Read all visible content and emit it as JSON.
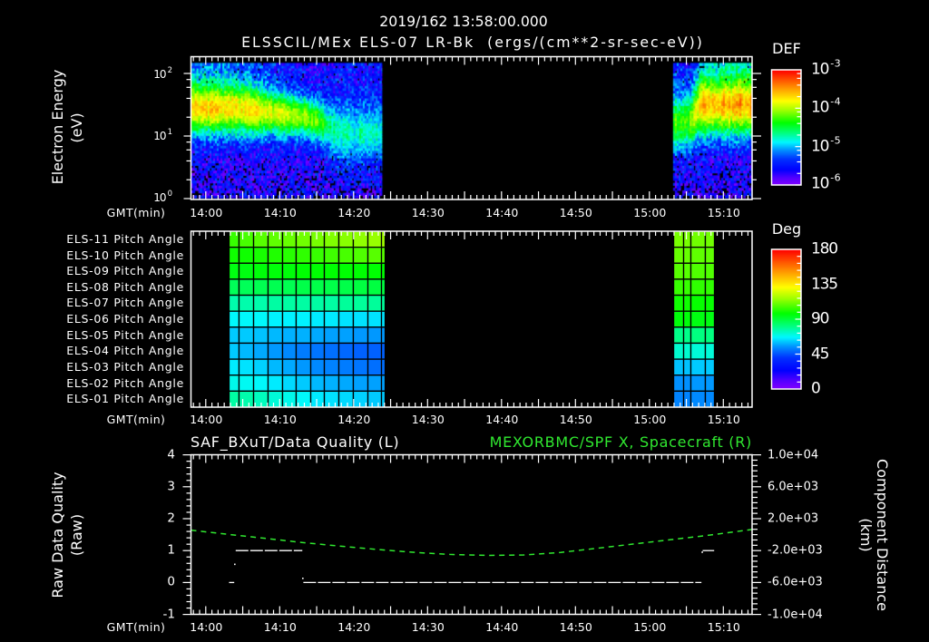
{
  "header": {
    "title_line1": "2019/162 13:58:00.000",
    "title_line2": "ELSSCIL/MEx ELS-07 LR-Bk  (ergs/(cm**2-sr-sec-eV))"
  },
  "time_axis": {
    "label": "GMT(min)",
    "start": "13:58",
    "span_min": 76,
    "tick_labels": [
      "14:00",
      "14:10",
      "14:20",
      "14:30",
      "14:40",
      "14:50",
      "15:00",
      "15:10"
    ]
  },
  "energy_panel": {
    "ylabel": "Electron Energy",
    "yunit": "(eV)",
    "yticks": [
      {
        "base": "10",
        "exp": "2"
      },
      {
        "base": "10",
        "exp": "1"
      },
      {
        "base": "10",
        "exp": "0"
      }
    ],
    "colorbar": {
      "title": "DEF",
      "ticks": [
        {
          "base": "10",
          "exp": "-3"
        },
        {
          "base": "10",
          "exp": "-4"
        },
        {
          "base": "10",
          "exp": "-5"
        },
        {
          "base": "10",
          "exp": "-6"
        }
      ]
    }
  },
  "pitch_panel": {
    "row_labels": [
      "ELS-11 Pitch Angle",
      "ELS-10 Pitch Angle",
      "ELS-09 Pitch Angle",
      "ELS-08 Pitch Angle",
      "ELS-07 Pitch Angle",
      "ELS-06 Pitch Angle",
      "ELS-05 Pitch Angle",
      "ELS-04 Pitch Angle",
      "ELS-03 Pitch Angle",
      "ELS-02 Pitch Angle",
      "ELS-01 Pitch Angle"
    ],
    "colorbar": {
      "title": "Deg",
      "ticks": [
        "180",
        "135",
        "90",
        "45",
        "0"
      ]
    }
  },
  "quality_panel": {
    "left_title": "SAF_BXuT/Data Quality (L)",
    "right_title": "MEXORBMC/SPF X, Spacecraft (R)",
    "ylabel_left": "Raw Data Quality",
    "yunit_left": "(Raw)",
    "yticks_left": [
      "4",
      "3",
      "2",
      "1",
      "0",
      "-1"
    ],
    "ylabel_right": "Component Distance",
    "yunit_right": "(km)",
    "yticks_right": [
      "1.0e+04",
      "6.0e+03",
      "2.0e+03",
      "-2.0e+03",
      "-6.0e+03",
      "-1.0e+04"
    ]
  },
  "colors": {
    "background": "#000000",
    "text": "#ffffff",
    "spacecraft_x_series": "#30e830",
    "data_quality_series": "#ffffff",
    "colormap": [
      [
        0.0,
        "#8000ff"
      ],
      [
        0.06,
        "#5000ff"
      ],
      [
        0.13,
        "#0000ff"
      ],
      [
        0.22,
        "#0030ff"
      ],
      [
        0.3,
        "#0090ff"
      ],
      [
        0.37,
        "#00f8ff"
      ],
      [
        0.45,
        "#00ff80"
      ],
      [
        0.54,
        "#00ff00"
      ],
      [
        0.65,
        "#a0ff00"
      ],
      [
        0.73,
        "#ffff00"
      ],
      [
        0.85,
        "#ff9000"
      ],
      [
        1.0,
        "#ff0000"
      ]
    ]
  },
  "chart_data": [
    {
      "id": "electron-energy-spectrogram",
      "type": "heatmap",
      "title": "ELSSCIL/MEx ELS-07 LR-Bk  (ergs/(cm**2-sr-sec-eV))",
      "xlabel": "GMT(min)",
      "ylabel": "Electron Energy (eV)",
      "x_start": "13:58",
      "x_range_min": [
        0,
        76
      ],
      "x_ticks": [
        "14:00",
        "14:10",
        "14:20",
        "14:30",
        "14:40",
        "14:50",
        "15:00",
        "15:10"
      ],
      "yscale": "log",
      "ylim": [
        1,
        188
      ],
      "y_ticks": [
        "10^0",
        "10^1",
        "10^2"
      ],
      "colorbar": {
        "label": "DEF",
        "scale": "log",
        "zlim": [
          1e-06,
          0.001
        ],
        "ticks": [
          "10^-6",
          "10^-5",
          "10^-4",
          "10^-3"
        ]
      },
      "data_energy_range_eV": [
        1.03,
        147
      ],
      "energy_bins": 54,
      "time_bin_min": 0.25,
      "background_log10_def": {
        "low_energy": -5.65
      },
      "black_cell_fraction_low_energy": 0.3,
      "segments": [
        {
          "start_min": 0,
          "end_min": 25.8,
          "keyframes": [
            {
              "t": 0,
              "peak_log10_eV": 1.45,
              "width_log10": 0.28,
              "peak_log10_def": -3.7,
              "high_bg_log10_def": -5.2
            },
            {
              "t": 6,
              "peak_log10_eV": 1.45,
              "width_log10": 0.28,
              "peak_log10_def": -3.68,
              "high_bg_log10_def": -5.25
            },
            {
              "t": 11,
              "peak_log10_eV": 1.38,
              "width_log10": 0.25,
              "peak_log10_def": -3.85,
              "high_bg_log10_def": -5.45
            },
            {
              "t": 16,
              "peak_log10_eV": 1.3,
              "width_log10": 0.22,
              "peak_log10_def": -4.05,
              "high_bg_log10_def": -5.6
            },
            {
              "t": 18.5,
              "peak_log10_eV": 1.18,
              "width_log10": 0.26,
              "peak_log10_def": -4.5,
              "high_bg_log10_def": -5.6
            },
            {
              "t": 20,
              "peak_log10_eV": 1.05,
              "width_log10": 0.32,
              "peak_log10_def": -4.75,
              "high_bg_log10_def": -5.55
            },
            {
              "t": 25.8,
              "peak_log10_eV": 1.05,
              "width_log10": 0.32,
              "peak_log10_def": -4.8,
              "high_bg_log10_def": -5.5
            }
          ]
        },
        {
          "start_min": 65.2,
          "end_min": 75.8,
          "keyframes": [
            {
              "t": 65.2,
              "peak_log10_eV": 1.2,
              "width_log10": 0.3,
              "peak_log10_def": -4.25,
              "high_bg_log10_def": -5.4
            },
            {
              "t": 67.6,
              "peak_log10_eV": 1.25,
              "width_log10": 0.3,
              "peak_log10_def": -4.15,
              "high_bg_log10_def": -5.5
            },
            {
              "t": 69,
              "peak_log10_eV": 1.5,
              "width_log10": 0.32,
              "peak_log10_def": -3.6,
              "high_bg_log10_def": -5.1
            },
            {
              "t": 75.8,
              "peak_log10_eV": 1.5,
              "width_log10": 0.32,
              "peak_log10_def": -3.5,
              "high_bg_log10_def": -5.0
            }
          ]
        }
      ]
    },
    {
      "id": "pitch-angle-grid",
      "type": "heatmap",
      "xlabel": "GMT(min)",
      "x_start": "13:58",
      "rows": [
        "ELS-11 Pitch Angle",
        "ELS-10 Pitch Angle",
        "ELS-09 Pitch Angle",
        "ELS-08 Pitch Angle",
        "ELS-07 Pitch Angle",
        "ELS-06 Pitch Angle",
        "ELS-05 Pitch Angle",
        "ELS-04 Pitch Angle",
        "ELS-03 Pitch Angle",
        "ELS-02 Pitch Angle",
        "ELS-01 Pitch Angle"
      ],
      "colorbar": {
        "label": "Deg",
        "zlim": [
          0,
          180
        ],
        "ticks": [
          180,
          135,
          90,
          45,
          0
        ]
      },
      "blocks": [
        {
          "col_edges_min": [
            5.15,
            6.5,
            8.47,
            10.43,
            12.39,
            14.23,
            16.2,
            18.04,
            20.0,
            21.96,
            23.93,
            25.77,
            26.26
          ],
          "values_deg": [
            [
              104,
              106,
              108,
              109,
              110,
              111,
              112,
              113,
              114,
              115,
              116,
              117
            ],
            [
              99,
              99,
              100,
              101,
              102,
              103,
              104,
              105,
              106,
              107,
              108,
              108
            ],
            [
              95,
              95,
              96,
              96,
              96,
              97,
              97,
              97,
              97,
              97,
              97,
              97
            ],
            [
              86,
              86,
              87,
              87,
              87,
              88,
              88,
              88,
              88,
              89,
              89,
              89
            ],
            [
              76,
              76,
              76,
              77,
              77,
              77,
              77,
              77,
              78,
              78,
              78,
              78
            ],
            [
              67,
              67,
              67,
              66,
              66,
              66,
              65,
              65,
              64,
              64,
              64,
              64
            ],
            [
              61,
              61,
              60,
              59,
              58,
              58,
              57,
              56,
              56,
              55,
              55,
              55
            ],
            [
              61,
              59,
              57,
              55,
              53,
              51,
              50,
              49,
              48,
              47,
              47,
              47
            ],
            [
              65,
              64,
              62,
              59,
              57,
              55,
              53,
              52,
              51,
              50,
              49,
              49
            ],
            [
              69,
              68,
              67,
              65,
              63,
              61,
              59,
              58,
              57,
              56,
              56,
              56
            ],
            [
              77,
              76,
              74,
              71,
              69,
              67,
              65,
              64,
              63,
              62,
              61,
              61
            ]
          ]
        },
        {
          "col_edges_min": [
            65.28,
            66.63,
            67.61,
            69.57,
            70.8
          ],
          "values_deg": [
            [
              112,
              112,
              111,
              111
            ],
            [
              110,
              110,
              109,
              109
            ],
            [
              108,
              108,
              107,
              107
            ],
            [
              104,
              104,
              103,
              103
            ],
            [
              99,
              99,
              98,
              98
            ],
            [
              96,
              96,
              95,
              95
            ],
            [
              80,
              80,
              81,
              81
            ],
            [
              72,
              72,
              71,
              71
            ],
            [
              60,
              60,
              61,
              61
            ],
            [
              54,
              54,
              55,
              55
            ],
            [
              52,
              52,
              53,
              53
            ]
          ]
        }
      ]
    },
    {
      "id": "data-quality-and-spacecraft-x",
      "type": "line",
      "xlabel": "GMT(min)",
      "x_start": "13:58",
      "left_axis": {
        "label": "Raw Data Quality (Raw)",
        "ylim": [
          -1,
          4
        ],
        "ticks": [
          4,
          3,
          2,
          1,
          0,
          -1
        ]
      },
      "right_axis": {
        "label": "Component Distance (km)",
        "ylim": [
          -10000,
          10000
        ],
        "ticks": [
          10000,
          6000,
          2000,
          -2000,
          -6000,
          -10000
        ]
      },
      "series": [
        {
          "name": "SAF_BXuT/Data Quality (L)",
          "axis": "left",
          "color": "#ffffff",
          "segments": [
            {
              "t0": 5.15,
              "t1": 5.85,
              "value": 0
            },
            {
              "t0": 6.05,
              "t1": 15.06,
              "value": 1
            },
            {
              "t0": 15.2,
              "t1": 69.04,
              "value": 0
            },
            {
              "t0": 69.2,
              "t1": 70.76,
              "value": 1
            }
          ],
          "points": [
            {
              "t": 5.93,
              "value": 0.57
            },
            {
              "t": 15.13,
              "value": 0.13
            },
            {
              "t": 69.15,
              "value": 0.95
            }
          ]
        },
        {
          "name": "MEXORBMC/SPF X, Spacecraft (R)",
          "axis": "right",
          "color": "#30e830",
          "t_min": [
            0,
            5,
            10,
            15,
            20,
            25,
            30,
            35,
            40,
            45,
            50,
            55,
            60,
            65,
            70,
            75.9
          ],
          "values_km": [
            560,
            40,
            -460,
            -980,
            -1430,
            -1840,
            -2210,
            -2480,
            -2600,
            -2550,
            -2230,
            -1700,
            -1160,
            -620,
            -80,
            650
          ]
        }
      ]
    }
  ]
}
